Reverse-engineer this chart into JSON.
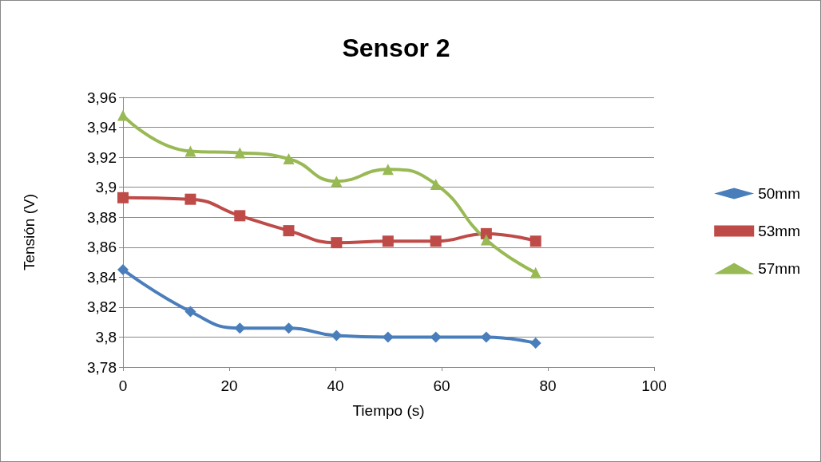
{
  "chart_data": {
    "type": "line",
    "title": "Sensor 2",
    "xlabel": "Tiempo (s)",
    "ylabel": "Tensión (V)",
    "x": [
      0,
      12.7,
      22,
      31.2,
      40.2,
      49.9,
      58.9,
      68.4,
      77.7
    ],
    "series": [
      {
        "name": "50mm",
        "color": "#4a7ebb",
        "marker": "diamond",
        "values": [
          3.845,
          3.817,
          3.806,
          3.806,
          3.801,
          3.8,
          3.8,
          3.8,
          3.796
        ]
      },
      {
        "name": "53mm",
        "color": "#be4b48",
        "marker": "square",
        "values": [
          3.893,
          3.892,
          3.881,
          3.871,
          3.863,
          3.864,
          3.864,
          3.869,
          3.864
        ]
      },
      {
        "name": "57mm",
        "color": "#98b954",
        "marker": "triangle",
        "values": [
          3.948,
          3.924,
          3.923,
          3.919,
          3.904,
          3.912,
          3.902,
          3.865,
          3.843
        ]
      }
    ],
    "xlim": [
      0,
      100
    ],
    "xticks": [
      0,
      20,
      40,
      60,
      80,
      100
    ],
    "ylim": [
      3.78,
      3.96
    ],
    "yticks": [
      {
        "value": 3.78,
        "label": "3,78"
      },
      {
        "value": 3.8,
        "label": "3,8"
      },
      {
        "value": 3.82,
        "label": "3,82"
      },
      {
        "value": 3.84,
        "label": "3,84"
      },
      {
        "value": 3.86,
        "label": "3,86"
      },
      {
        "value": 3.88,
        "label": "3,88"
      },
      {
        "value": 3.9,
        "label": "3,9"
      },
      {
        "value": 3.92,
        "label": "3,92"
      },
      {
        "value": 3.94,
        "label": "3,94"
      },
      {
        "value": 3.96,
        "label": "3,96"
      }
    ],
    "grid": "y",
    "legend": "right",
    "line_style": "solid"
  }
}
